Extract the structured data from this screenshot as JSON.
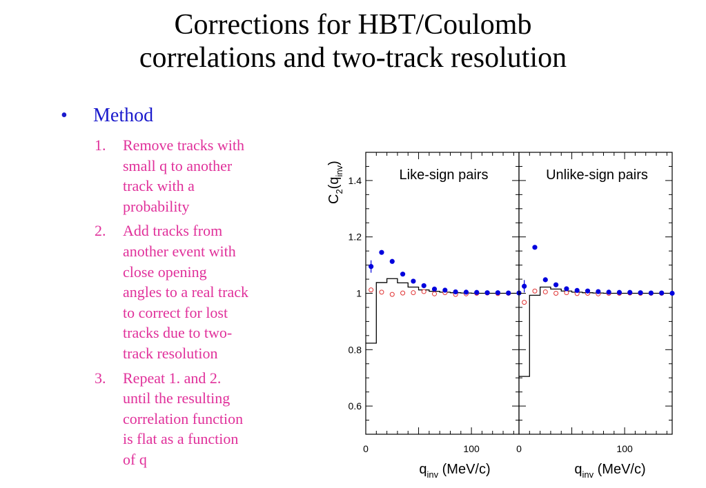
{
  "slide": {
    "title_lines": [
      "Corrections for HBT/Coulomb",
      "correlations and two-track resolution"
    ],
    "bullet": {
      "symbol": "•",
      "label": "Method"
    },
    "steps": [
      {
        "num": "1.",
        "lines": [
          "Remove tracks with",
          "small q to another",
          "track with a",
          "probability"
        ]
      },
      {
        "num": "2.",
        "lines": [
          "Add tracks from",
          "another event with",
          "close opening",
          "angles to a real track",
          "to correct for lost",
          "tracks due to two-",
          "track resolution"
        ]
      },
      {
        "num": "3.",
        "lines": [
          "Repeat 1. and 2.",
          "until the resulting",
          "correlation function",
          "is flat as a function",
          "of q"
        ]
      }
    ],
    "colors": {
      "title": "#000000",
      "bullet": "#1a1acc",
      "steps": "#e0309a",
      "filled_markers": "#0000dd",
      "open_markers": "#e03030",
      "histogram": "#000000"
    }
  },
  "chart_data": {
    "type": "scatter",
    "ylabel": {
      "main": "C",
      "sub1": "2",
      "paren_open": "(q",
      "sub2": "inv",
      "paren_close": ")"
    },
    "xlabel": {
      "main": "q",
      "sub": "inv",
      "rest": " (MeV/c)"
    },
    "ylim": [
      0.5,
      1.5
    ],
    "xlim": [
      0,
      145
    ],
    "yticks": [
      0.6,
      0.8,
      1,
      1.2,
      1.4
    ],
    "ytick_labels": [
      "0.6",
      "0.8",
      "1",
      "1.2",
      "1.4"
    ],
    "xtick_labels": [
      "0",
      "100"
    ],
    "xtick_values": [
      0,
      100
    ],
    "panels": [
      {
        "name": "Like-sign pairs",
        "series": [
          {
            "marker": "filled",
            "x": [
              5,
              15,
              25,
              35,
              45,
              55,
              65,
              75,
              85,
              95,
              105,
              115,
              125,
              135,
              145
            ],
            "y": [
              1.095,
              1.145,
              1.113,
              1.068,
              1.043,
              1.027,
              1.015,
              1.011,
              1.005,
              1.004,
              1.003,
              1.002,
              1.002,
              1.001,
              1.001
            ]
          },
          {
            "marker": "open",
            "x": [
              5,
              15,
              25,
              35,
              45,
              55,
              65,
              75,
              85,
              95,
              105,
              115,
              125,
              135
            ],
            "y": [
              1.012,
              1.004,
              0.996,
              1.001,
              1.002,
              1.006,
              0.998,
              1.002,
              0.996,
              0.998,
              1.0,
              1.001,
              0.999,
              1.0
            ]
          },
          {
            "marker": "histogram",
            "edges": [
              0,
              10,
              20,
              30,
              40,
              50,
              60,
              70,
              80,
              90,
              100,
              110,
              120,
              130,
              140,
              145
            ],
            "values": [
              0.823,
              1.038,
              1.052,
              1.037,
              1.022,
              1.012,
              1.007,
              1.004,
              1.002,
              1.001,
              1.0,
              1.0,
              1.0,
              1.0,
              1.0
            ]
          }
        ]
      },
      {
        "name": "Unlike-sign pairs",
        "series": [
          {
            "marker": "filled",
            "x": [
              5,
              15,
              25,
              35,
              45,
              55,
              65,
              75,
              85,
              95,
              105,
              115,
              125,
              135,
              145
            ],
            "y": [
              1.025,
              1.163,
              1.048,
              1.03,
              1.016,
              1.01,
              1.008,
              1.006,
              1.004,
              1.003,
              1.003,
              1.002,
              1.001,
              1.001,
              1.0
            ]
          },
          {
            "marker": "open",
            "x": [
              5,
              15,
              25,
              35,
              45,
              55,
              65,
              75,
              85,
              95,
              105,
              115,
              125,
              135
            ],
            "y": [
              0.968,
              1.008,
              1.005,
              1.0,
              1.002,
              0.999,
              1.0,
              0.998,
              1.0,
              1.0,
              1.001,
              1.0,
              1.0,
              1.0
            ]
          },
          {
            "marker": "histogram",
            "edges": [
              0,
              10,
              20,
              30,
              40,
              50,
              60,
              70,
              80,
              90,
              100,
              110,
              120,
              130,
              140,
              145
            ],
            "values": [
              0.705,
              0.993,
              1.022,
              1.015,
              1.008,
              1.004,
              1.002,
              1.001,
              1.0,
              1.0,
              1.0,
              1.0,
              1.0,
              1.0,
              1.0
            ]
          }
        ]
      }
    ]
  }
}
